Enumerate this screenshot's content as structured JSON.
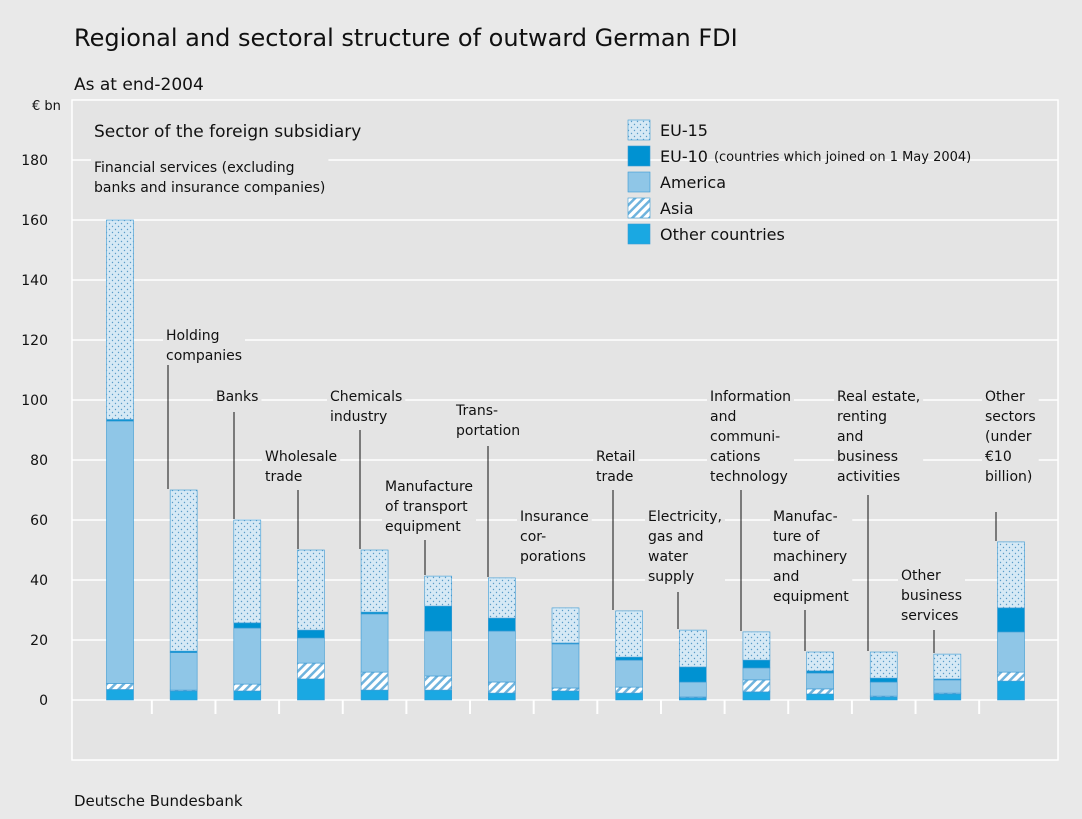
{
  "chart_data": {
    "type": "stacked-bar",
    "title": "Regional and sectoral structure of outward German FDI",
    "subtitle": "As at end-2004",
    "y_unit": "€ bn",
    "panel_label": "Sector of the foreign subsidiary",
    "source": "Deutsche Bundesbank",
    "categories": [
      "Financial services (excluding\nbanks and insurance companies)",
      "Holding\ncompanies",
      "Banks",
      "Wholesale\ntrade",
      "Chemicals\nindustry",
      "Manufacture\nof transport\nequipment",
      "Trans-\nportation",
      "Insurance\ncor-\nporations",
      "Retail\ntrade",
      "Electricity,\ngas and\nwater\nsupply",
      "Information\nand\ncommuni-\ncations\ntechnology",
      "Manufac-\nture of\nmachinery\nand\nequipment",
      "Real estate,\nrenting\nand\nbusiness\nactivities",
      "Other\nbusiness\nservices",
      "Other\nsectors\n(under\n€10\nbillion)"
    ],
    "series": [
      {
        "name": "EU-15",
        "color": "#d6e9f5",
        "pattern": "dots",
        "values": [
          66.5,
          53.7,
          34.3,
          26.7,
          20.7,
          10.0,
          13.4,
          11.7,
          15.4,
          12.3,
          9.4,
          6.3,
          8.7,
          8.3,
          22.0
        ]
      },
      {
        "name": "EU-10",
        "note": "(countries which joined on 1 May 2004)",
        "color": "#0092d2",
        "values": [
          0.5,
          0.5,
          1.7,
          2.6,
          0.6,
          8.3,
          4.3,
          0.3,
          1.0,
          5.0,
          2.6,
          0.7,
          1.3,
          0.3,
          8.0
        ]
      },
      {
        "name": "America",
        "color": "#8fc6e7",
        "values": [
          87.5,
          12.5,
          18.7,
          8.4,
          19.4,
          15.0,
          17.0,
          14.7,
          9.0,
          5.0,
          4.0,
          5.3,
          4.7,
          4.4,
          13.4
        ]
      },
      {
        "name": "Asia",
        "color": "#8fc6e7",
        "pattern": "hatch",
        "values": [
          2.0,
          0.3,
          2.3,
          5.3,
          6.0,
          4.7,
          3.7,
          1.0,
          2.0,
          0.3,
          4.0,
          1.7,
          0.3,
          0.3,
          3.0
        ]
      },
      {
        "name": "Other countries",
        "color": "#1aa8e2",
        "values": [
          3.5,
          3.0,
          3.0,
          7.0,
          3.3,
          3.3,
          2.3,
          3.0,
          2.3,
          0.7,
          2.7,
          2.0,
          1.0,
          2.0,
          6.3
        ]
      }
    ],
    "ylim": [
      -20,
      200
    ],
    "yticks": [
      0,
      20,
      40,
      60,
      80,
      100,
      120,
      140,
      160,
      180
    ],
    "grid": true
  }
}
